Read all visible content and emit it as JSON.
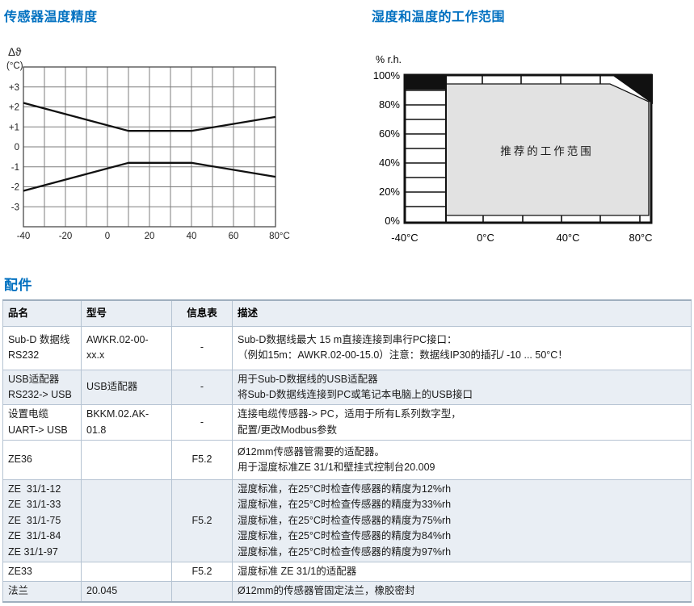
{
  "page_titles": {
    "temp_accuracy": "传感器温度精度",
    "operating_range": "湿度和温度的工作范围"
  },
  "chart_data": [
    {
      "type": "line",
      "title": "传感器温度精度",
      "ylabel": "Δϑ",
      "ylabel_unit": "(°C)",
      "xlabel": "",
      "xlim": [
        -40,
        80
      ],
      "ylim": [
        -4,
        4
      ],
      "x_grid_step_deg_c": 10,
      "y_grid_step_deg": 1,
      "grid": "on",
      "x_tick_labels": [
        "-40",
        "-20",
        "0",
        "20",
        "40",
        "60",
        "80°C"
      ],
      "y_tick_labels": [
        "+3",
        "+2",
        "+1",
        "0",
        "-1",
        "-2",
        "-3"
      ],
      "series": [
        {
          "name": "upper_tolerance_limit",
          "points": [
            [
              -40,
              2.2
            ],
            [
              10,
              0.8
            ],
            [
              40,
              0.8
            ],
            [
              80,
              1.5
            ]
          ]
        },
        {
          "name": "lower_tolerance_limit",
          "points": [
            [
              -40,
              -2.2
            ],
            [
              10,
              -0.8
            ],
            [
              40,
              -0.8
            ],
            [
              80,
              -1.5
            ]
          ]
        }
      ]
    },
    {
      "type": "area",
      "title": "湿度和温度的工作范围",
      "ylabel": "% r.h.",
      "xlim_deg_c": [
        -40,
        80
      ],
      "ylim_percent_rh": [
        0,
        100
      ],
      "y_tick_labels": [
        "100%",
        "80%",
        "60%",
        "40%",
        "20%",
        "0%"
      ],
      "x_tick_labels": [
        "-40°C",
        "0°C",
        "40°C",
        "80°C"
      ],
      "region_label": "推荐的工作范围",
      "recommended_region_deg_c": [
        -20,
        80
      ],
      "recommended_region_percent_rh": [
        3,
        94
      ],
      "region_corner_cut_deg_c_percent_rh": [
        [
          60,
          94
        ],
        [
          80,
          81
        ]
      ],
      "excluded_black_zones": [
        "-40..-20°C above 90%rh",
        "above line 60°C/100%rh to 80°C/81%rh"
      ]
    }
  ],
  "accessories_table": {
    "heading": "配件",
    "columns": [
      "品名",
      "型号",
      "信息表",
      "描述"
    ],
    "rows": [
      {
        "name": "Sub-D 数据线\nRS232",
        "model": "AWKR.02-00-\nxx.x",
        "info_sheet": "-",
        "description": "Sub-D数据线最大 15 m直接连接到串行PC接口：\n（例如15m：AWKR.02-00-15.0）注意：数据线IP30的插孔/ -10 ... 50°C！"
      },
      {
        "name": "USB适配器\nRS232-> USB",
        "model": "USB适配器",
        "info_sheet": "-",
        "description": "用于Sub-D数据线的USB适配器\n将Sub-D数据线连接到PC或笔记本电脑上的USB接口"
      },
      {
        "name": "设置电缆\nUART-> USB",
        "model": "BKKM.02.AK-\n01.8",
        "info_sheet": "-",
        "description": "连接电缆传感器-> PC，适用于所有L系列数字型，\n配置/更改Modbus参数"
      },
      {
        "name": "ZE36",
        "model": "",
        "info_sheet": "F5.2",
        "description": "Ø12mm传感器管需要的适配器。\n用于湿度标准ZE 31/1和壁挂式控制台20.009"
      },
      {
        "name": "ZE  31/1-12\nZE  31/1-33\nZE  31/1-75\nZE  31/1-84\nZE 31/1-97",
        "model": "",
        "info_sheet": "F5.2",
        "description": "湿度标准，在25°C时检查传感器的精度为12%rh\n湿度标准，在25°C时检查传感器的精度为33%rh\n湿度标准，在25°C时检查传感器的精度为75%rh\n湿度标准，在25°C时检查传感器的精度为84%rh\n湿度标准，在25°C时检查传感器的精度为97%rh"
      },
      {
        "name": "ZE33",
        "model": "",
        "info_sheet": "F5.2",
        "description": "湿度标准 ZE 31/1的适配器"
      },
      {
        "name": "法兰",
        "model": "20.045",
        "info_sheet": "",
        "description": "Ø12mm的传感器管固定法兰，橡胶密封"
      }
    ]
  },
  "colors": {
    "heading_blue": "#0070C0",
    "table_shaded_row": "#E9EEF4",
    "table_inner_border": "#B5C3D2",
    "table_outer_border": "#9FAFBE",
    "recommended_region_gray": "#E2E2E2",
    "chart_line_black": "#111111"
  }
}
